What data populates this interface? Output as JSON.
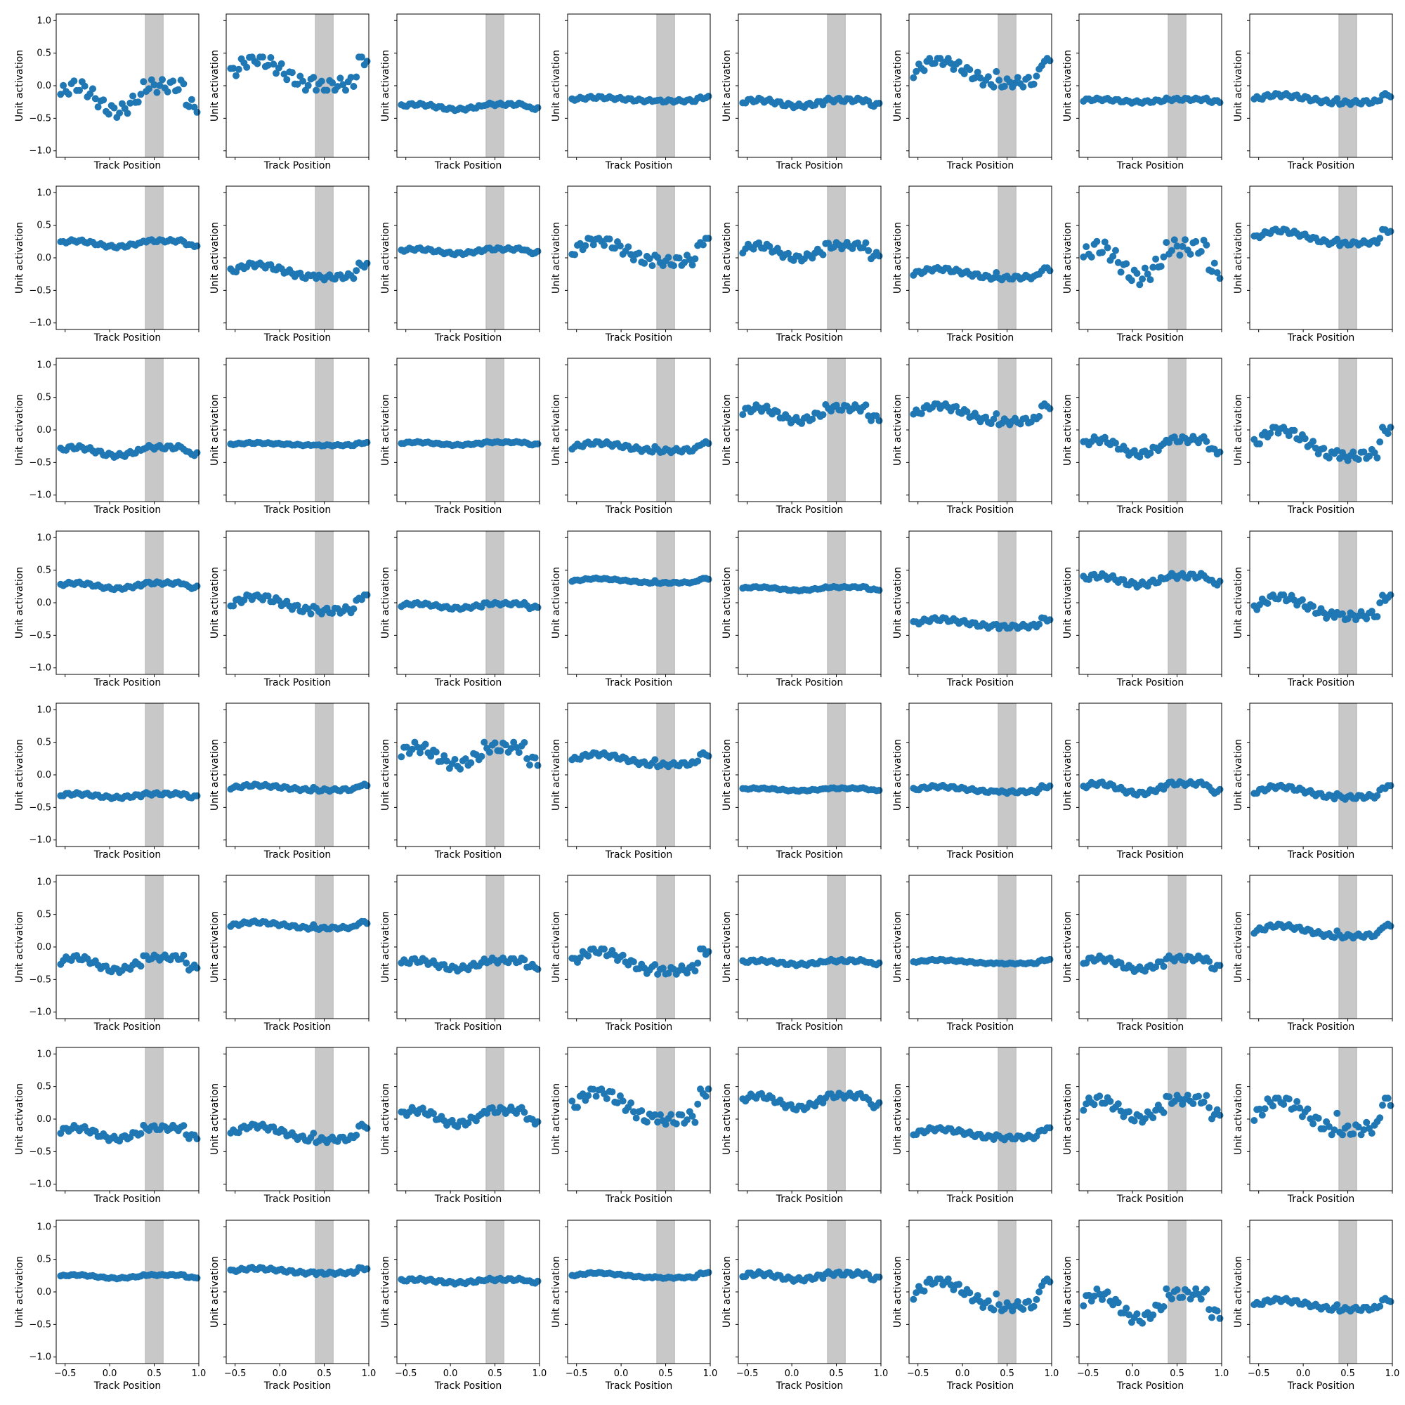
{
  "chart_data": {
    "type": "scatter",
    "grid": {
      "rows": 8,
      "cols": 8
    },
    "xlabel": "Track Position",
    "ylabel": "Unit activation",
    "xlim": [
      -0.6,
      1.0
    ],
    "ylim": [
      -1.1,
      1.1
    ],
    "xticks": [
      -0.5,
      0.0,
      0.5,
      1.0
    ],
    "xtick_labels": [
      "−0.5",
      "0.0",
      "0.5",
      "1.0"
    ],
    "yticks": [
      -1.0,
      -0.5,
      0.0,
      0.5,
      1.0
    ],
    "ytick_labels": [
      "−1.0",
      "−0.5",
      "0.0",
      "0.5",
      "1.0"
    ],
    "shaded_region": [
      0.4,
      0.6
    ],
    "shade_color": "#c8c8c8",
    "marker_color": "#1f77b4",
    "x": [
      -0.55,
      -0.52,
      -0.49,
      -0.46,
      -0.43,
      -0.4,
      -0.37,
      -0.34,
      -0.31,
      -0.28,
      -0.25,
      -0.22,
      -0.19,
      -0.16,
      -0.13,
      -0.1,
      -0.07,
      -0.04,
      -0.01,
      0.02,
      0.05,
      0.08,
      0.11,
      0.14,
      0.17,
      0.2,
      0.23,
      0.26,
      0.29,
      0.32,
      0.35,
      0.38,
      0.41,
      0.44,
      0.47,
      0.5,
      0.53,
      0.56,
      0.59,
      0.62,
      0.65,
      0.68,
      0.71,
      0.74,
      0.77,
      0.8,
      0.83,
      0.86,
      0.89,
      0.92,
      0.95,
      0.98
    ],
    "panel_profiles": [
      {
        "low": -0.48,
        "high": 0.08,
        "noise": 0.1
      },
      {
        "low": -0.05,
        "high": 0.42,
        "noise": 0.1
      },
      {
        "low": -0.38,
        "high": -0.27,
        "noise": 0.02
      },
      {
        "low": -0.24,
        "high": -0.18,
        "noise": 0.02
      },
      {
        "low": -0.33,
        "high": -0.2,
        "noise": 0.03
      },
      {
        "low": 0.0,
        "high": 0.4,
        "noise": 0.08
      },
      {
        "low": -0.26,
        "high": -0.2,
        "noise": 0.02
      },
      {
        "low": -0.27,
        "high": -0.14,
        "noise": 0.03
      },
      {
        "low": 0.15,
        "high": 0.28,
        "noise": 0.02
      },
      {
        "low": -0.32,
        "high": -0.1,
        "noise": 0.04
      },
      {
        "low": 0.05,
        "high": 0.15,
        "noise": 0.02
      },
      {
        "low": -0.1,
        "high": 0.28,
        "noise": 0.08
      },
      {
        "low": -0.05,
        "high": 0.23,
        "noise": 0.05
      },
      {
        "low": -0.32,
        "high": -0.17,
        "noise": 0.03
      },
      {
        "low": -0.4,
        "high": 0.26,
        "noise": 0.12
      },
      {
        "low": 0.2,
        "high": 0.42,
        "noise": 0.03
      },
      {
        "low": -0.42,
        "high": -0.24,
        "noise": 0.03
      },
      {
        "low": -0.24,
        "high": -0.2,
        "noise": 0.01
      },
      {
        "low": -0.24,
        "high": -0.18,
        "noise": 0.01
      },
      {
        "low": -0.33,
        "high": -0.2,
        "noise": 0.03
      },
      {
        "low": 0.1,
        "high": 0.38,
        "noise": 0.05
      },
      {
        "low": 0.1,
        "high": 0.38,
        "noise": 0.05
      },
      {
        "low": -0.42,
        "high": -0.1,
        "noise": 0.05
      },
      {
        "low": -0.45,
        "high": 0.02,
        "noise": 0.07
      },
      {
        "low": 0.2,
        "high": 0.32,
        "noise": 0.02
      },
      {
        "low": -0.15,
        "high": 0.1,
        "noise": 0.05
      },
      {
        "low": -0.1,
        "high": 0.0,
        "noise": 0.02
      },
      {
        "low": 0.3,
        "high": 0.37,
        "noise": 0.01
      },
      {
        "low": 0.18,
        "high": 0.25,
        "noise": 0.01
      },
      {
        "low": -0.38,
        "high": -0.25,
        "noise": 0.03
      },
      {
        "low": 0.25,
        "high": 0.44,
        "noise": 0.04
      },
      {
        "low": -0.24,
        "high": 0.1,
        "noise": 0.06
      },
      {
        "low": -0.36,
        "high": -0.28,
        "noise": 0.02
      },
      {
        "low": -0.24,
        "high": -0.16,
        "noise": 0.02
      },
      {
        "low": 0.1,
        "high": 0.48,
        "noise": 0.08
      },
      {
        "low": 0.14,
        "high": 0.32,
        "noise": 0.03
      },
      {
        "low": -0.25,
        "high": -0.2,
        "noise": 0.01
      },
      {
        "low": -0.27,
        "high": -0.18,
        "noise": 0.02
      },
      {
        "low": -0.32,
        "high": -0.1,
        "noise": 0.03
      },
      {
        "low": -0.36,
        "high": -0.18,
        "noise": 0.03
      },
      {
        "low": -0.4,
        "high": -0.12,
        "noise": 0.04
      },
      {
        "low": 0.28,
        "high": 0.38,
        "noise": 0.02
      },
      {
        "low": -0.36,
        "high": -0.18,
        "noise": 0.04
      },
      {
        "low": -0.4,
        "high": -0.05,
        "noise": 0.06
      },
      {
        "low": -0.28,
        "high": -0.2,
        "noise": 0.02
      },
      {
        "low": -0.26,
        "high": -0.2,
        "noise": 0.01
      },
      {
        "low": -0.38,
        "high": -0.14,
        "noise": 0.04
      },
      {
        "low": 0.15,
        "high": 0.33,
        "noise": 0.03
      },
      {
        "low": -0.34,
        "high": -0.1,
        "noise": 0.04
      },
      {
        "low": -0.34,
        "high": -0.1,
        "noise": 0.04
      },
      {
        "low": -0.12,
        "high": 0.18,
        "noise": 0.05
      },
      {
        "low": -0.06,
        "high": 0.44,
        "noise": 0.09
      },
      {
        "low": 0.13,
        "high": 0.4,
        "noise": 0.04
      },
      {
        "low": -0.3,
        "high": -0.15,
        "noise": 0.03
      },
      {
        "low": -0.05,
        "high": 0.36,
        "noise": 0.07
      },
      {
        "low": -0.22,
        "high": 0.3,
        "noise": 0.09
      },
      {
        "low": 0.2,
        "high": 0.27,
        "noise": 0.01
      },
      {
        "low": 0.28,
        "high": 0.36,
        "noise": 0.02
      },
      {
        "low": 0.13,
        "high": 0.2,
        "noise": 0.02
      },
      {
        "low": 0.21,
        "high": 0.29,
        "noise": 0.01
      },
      {
        "low": 0.17,
        "high": 0.3,
        "noise": 0.03
      },
      {
        "low": -0.27,
        "high": 0.18,
        "noise": 0.07
      },
      {
        "low": -0.5,
        "high": 0.05,
        "noise": 0.08
      },
      {
        "low": -0.28,
        "high": -0.12,
        "noise": 0.03
      }
    ]
  }
}
